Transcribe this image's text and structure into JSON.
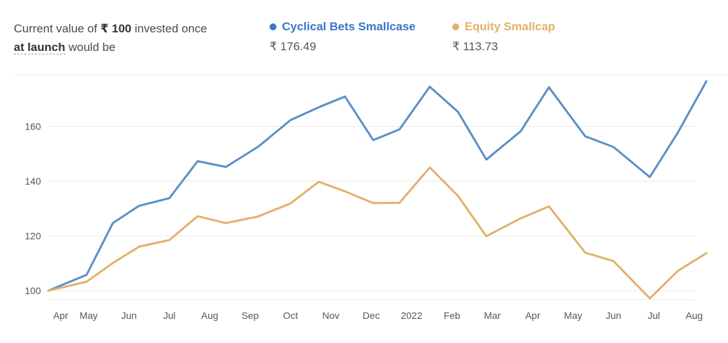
{
  "header": {
    "caption_prefix": "Current value of ",
    "caption_currency": "₹",
    "caption_amount": "100",
    "caption_mid": " invested once",
    "caption_link": "at launch",
    "caption_suffix": " would be"
  },
  "legend": [
    {
      "name": "Cyclical Bets Smallcase",
      "value": "₹ 176.49",
      "color": "#3a76c8"
    },
    {
      "name": "Equity Smallcap",
      "value": "₹ 113.73",
      "color": "#e0b26b"
    }
  ],
  "chart_data": {
    "type": "line",
    "x_tick_labels": [
      "Apr",
      "May",
      "Jun",
      "Jul",
      "Aug",
      "Sep",
      "Oct",
      "Nov",
      "Dec",
      "2022",
      "Feb",
      "Mar",
      "Apr",
      "May",
      "Jun",
      "Jul",
      "Aug"
    ],
    "y_ticks": [
      100,
      120,
      140,
      160
    ],
    "ylim": [
      97,
      178
    ],
    "grid": "horizontal",
    "series": [
      {
        "name": "Cyclical Bets Smallcase",
        "color": "#5b8fc7",
        "points": [
          [
            0,
            100
          ],
          [
            0.95,
            105.8
          ],
          [
            1.6,
            124.7
          ],
          [
            2.25,
            131
          ],
          [
            3.0,
            133.8
          ],
          [
            3.7,
            147.3
          ],
          [
            4.4,
            145.2
          ],
          [
            5.2,
            152.6
          ],
          [
            6.0,
            162.3
          ],
          [
            6.7,
            167
          ],
          [
            7.35,
            170.9
          ],
          [
            8.05,
            155
          ],
          [
            8.7,
            158.9
          ],
          [
            9.45,
            174.5
          ],
          [
            10.15,
            165.3
          ],
          [
            10.85,
            147.9
          ],
          [
            11.7,
            158.2
          ],
          [
            12.4,
            174.3
          ],
          [
            13.3,
            156.4
          ],
          [
            14.0,
            152.5
          ],
          [
            14.9,
            141.5
          ],
          [
            15.6,
            157.9
          ],
          [
            16.3,
            176.49
          ]
        ]
      },
      {
        "name": "Equity Smallcap",
        "color": "#e0b26b",
        "points": [
          [
            0,
            100
          ],
          [
            0.95,
            103.3
          ],
          [
            1.6,
            110.1
          ],
          [
            2.25,
            116.1
          ],
          [
            3.0,
            118.5
          ],
          [
            3.7,
            127.2
          ],
          [
            4.4,
            124.7
          ],
          [
            5.2,
            127.1
          ],
          [
            6.0,
            131.9
          ],
          [
            6.7,
            139.8
          ],
          [
            7.35,
            136.3
          ],
          [
            8.05,
            132
          ],
          [
            8.7,
            132.1
          ],
          [
            9.45,
            145
          ],
          [
            10.15,
            134.6
          ],
          [
            10.85,
            119.9
          ],
          [
            11.7,
            126.4
          ],
          [
            12.4,
            130.8
          ],
          [
            13.3,
            113.9
          ],
          [
            14.0,
            110.8
          ],
          [
            14.9,
            97.2
          ],
          [
            15.6,
            107.3
          ],
          [
            16.3,
            113.73
          ]
        ]
      }
    ]
  }
}
